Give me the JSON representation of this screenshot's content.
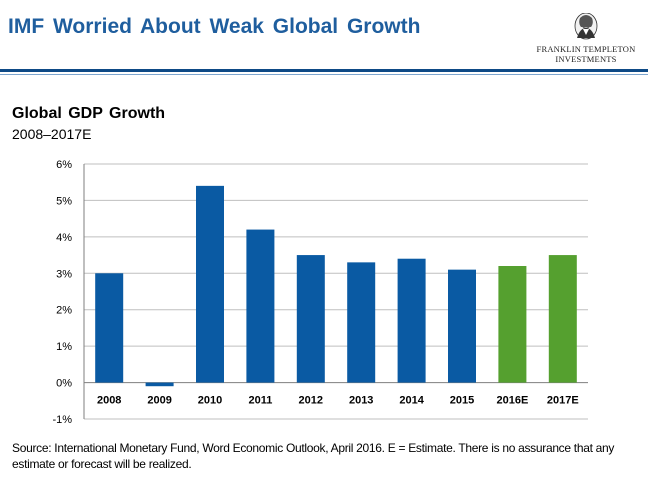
{
  "header": {
    "title": "IMF Worried About Weak Global Growth",
    "logo_text_line1": "FRANKLIN TEMPLETON",
    "logo_text_line2": "INVESTMENTS"
  },
  "chart_data": {
    "type": "bar",
    "title": "Global GDP Growth",
    "subtitle": "2008–2017E",
    "xlabel": "",
    "ylabel": "",
    "categories": [
      "2008",
      "2009",
      "2010",
      "2011",
      "2012",
      "2013",
      "2014",
      "2015",
      "2016E",
      "2017E"
    ],
    "values": [
      3.0,
      -0.1,
      5.4,
      4.2,
      3.5,
      3.3,
      3.4,
      3.1,
      3.2,
      3.5
    ],
    "estimate": [
      false,
      false,
      false,
      false,
      false,
      false,
      false,
      false,
      true,
      true
    ],
    "ylim": [
      -1,
      6
    ],
    "yticks": [
      "-1%",
      "0%",
      "1%",
      "2%",
      "3%",
      "4%",
      "5%",
      "6%"
    ],
    "grid": true,
    "colors": {
      "actual": "#0a5aa3",
      "estimate": "#55a02f",
      "grid": "#bfbfbf",
      "axis": "#7f7f7f"
    }
  },
  "footer": {
    "source": "Source: International Monetary Fund, Word Economic Outlook, April 2016. E = Estimate. There is no assurance that any estimate or forecast will be realized."
  }
}
